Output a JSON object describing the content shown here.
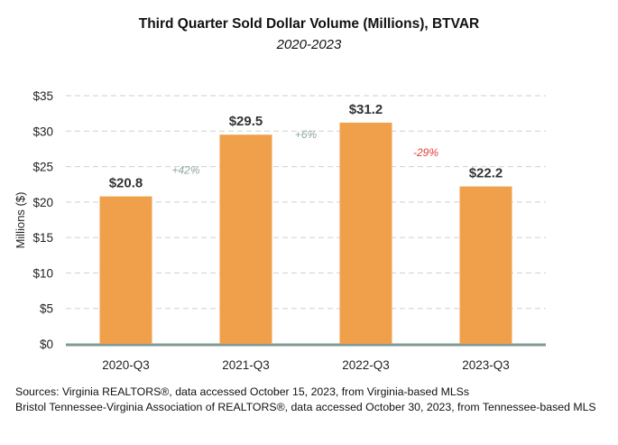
{
  "chart_data": {
    "type": "bar",
    "title": "Third Quarter Sold Dollar Volume (Millions), BTVAR",
    "subtitle": "2020-2023",
    "ylabel": "Millions ($)",
    "xlabel": "",
    "categories": [
      "2020-Q3",
      "2021-Q3",
      "2022-Q3",
      "2023-Q3"
    ],
    "values": [
      20.8,
      29.5,
      31.2,
      22.2
    ],
    "value_labels": [
      "$20.8",
      "$29.5",
      "$31.2",
      "$22.2"
    ],
    "ylim": [
      0,
      35
    ],
    "yticks": [
      0,
      5,
      10,
      15,
      20,
      25,
      30,
      35
    ],
    "ytick_labels": [
      "$0",
      "$5",
      "$10",
      "$15",
      "$20",
      "$25",
      "$30",
      "$35"
    ],
    "grid": true,
    "bar_color": "#F0A04B",
    "baseline_color": "#7E9A94",
    "changes": [
      {
        "label": "+42%",
        "color": "#8FA89F",
        "y_value": 24.5
      },
      {
        "label": "+6%",
        "color": "#8FA89F",
        "y_value": 29.5
      },
      {
        "label": "-29%",
        "color": "#E0403A",
        "y_value": 27.0
      }
    ]
  },
  "sources": [
    "Sources: Virginia REALTORS®, data accessed October 15, 2023, from Virginia-based MLSs",
    "Bristol Tennessee-Virginia Association of REALTORS®, data accessed October 30, 2023, from Tennessee-based MLS"
  ]
}
